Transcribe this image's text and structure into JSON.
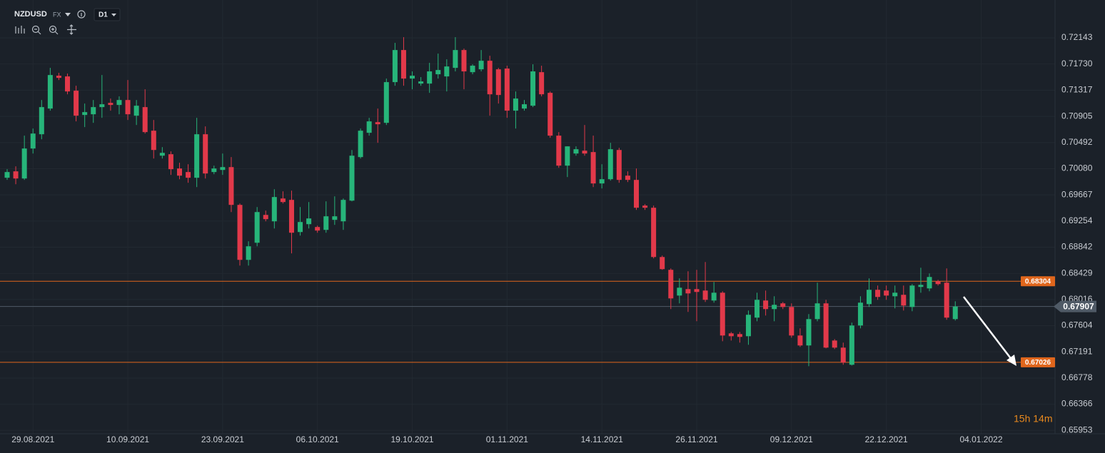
{
  "header": {
    "symbol": "NZDUSD",
    "market": "FX",
    "timeframe": "D1"
  },
  "chart_data": {
    "type": "candlestick",
    "categories": [
      null,
      null,
      null,
      "29.08.2021",
      null,
      null,
      null,
      null,
      null,
      null,
      null,
      null,
      null,
      null,
      "10.09.2021",
      null,
      null,
      null,
      null,
      null,
      null,
      null,
      null,
      null,
      null,
      "23.09.2021",
      null,
      null,
      null,
      null,
      null,
      null,
      null,
      null,
      null,
      null,
      "06.10.2021",
      null,
      null,
      null,
      null,
      null,
      null,
      null,
      null,
      null,
      null,
      "19.10.2021",
      null,
      null,
      null,
      null,
      null,
      null,
      null,
      null,
      null,
      null,
      "01.11.2021",
      null,
      null,
      null,
      null,
      null,
      null,
      null,
      null,
      null,
      null,
      "14.11.2021",
      null,
      null,
      null,
      null,
      null,
      null,
      null,
      null,
      null,
      null,
      "26.11.2021",
      null,
      null,
      null,
      null,
      null,
      null,
      null,
      null,
      null,
      null,
      "09.12.2021",
      null,
      null,
      null,
      null,
      null,
      null,
      null,
      null,
      null,
      null,
      "22.12.2021",
      null,
      null,
      null,
      null,
      null,
      null,
      null,
      null,
      null,
      null,
      "04.01.2022"
    ],
    "open": [
      0.69937,
      0.70038,
      0.69925,
      0.70398,
      0.70623,
      0.71028,
      0.71546,
      0.71535,
      0.7131,
      0.70927,
      0.70938,
      0.71051,
      0.71118,
      0.71085,
      0.71163,
      0.70916,
      0.71051,
      0.70679,
      0.70285,
      0.70308,
      0.70083,
      0.70027,
      0.69937,
      0.70623,
      0.70027,
      0.7006,
      0.70105,
      0.69509,
      0.68642,
      0.68912,
      0.69351,
      0.6925,
      0.6961,
      0.69588,
      0.69081,
      0.69205,
      0.6916,
      0.69115,
      0.69273,
      0.6925,
      0.69576,
      0.70263,
      0.70646,
      0.70814,
      0.70803,
      0.71445,
      0.71951,
      0.71501,
      0.71422,
      0.71422,
      0.71569,
      0.71535,
      0.7167,
      0.71951,
      0.71602,
      0.71647,
      0.71782,
      0.71647,
      0.71659,
      0.70995,
      0.71028,
      0.71073,
      0.71602,
      0.71276,
      0.70601,
      0.70128,
      0.70319,
      0.70364,
      0.70342,
      0.69847,
      0.69914,
      0.70375,
      0.6997,
      0.69903,
      0.69498,
      0.69464,
      0.68687,
      0.68485,
      0.68079,
      0.68181,
      0.68181,
      0.68158,
      0.68001,
      0.68124,
      0.67483,
      0.67472,
      0.67438,
      0.67731,
      0.68001,
      0.67866,
      0.67956,
      0.67899,
      0.67449,
      0.67292,
      0.67708,
      0.67956,
      0.6737,
      0.67258,
      0.66988,
      0.67607,
      0.67944,
      0.6817,
      0.68158,
      0.68068,
      0.68091,
      0.67899,
      0.68215,
      0.68192,
      0.68305,
      0.68282,
      0.67708,
      null,
      null,
      null
    ],
    "high": [
      0.70072,
      0.70117,
      0.70601,
      0.70713,
      0.71163,
      0.7167,
      0.71591,
      0.7158,
      0.71388,
      0.71107,
      0.71163,
      0.71557,
      0.71186,
      0.7122,
      0.71478,
      0.71163,
      0.71332,
      0.70848,
      0.7042,
      0.70353,
      0.70173,
      0.7015,
      0.70882,
      0.70747,
      0.70128,
      0.70319,
      0.70263,
      0.69531,
      0.68935,
      0.69475,
      0.69419,
      0.69756,
      0.69723,
      0.69734,
      0.69475,
      0.69554,
      0.69182,
      0.69565,
      0.69644,
      0.6961,
      0.70375,
      0.70713,
      0.70882,
      0.71028,
      0.71501,
      0.72064,
      0.72154,
      0.71614,
      0.71524,
      0.71749,
      0.71895,
      0.71805,
      0.72154,
      0.71974,
      0.71726,
      0.71951,
      0.71861,
      0.7167,
      0.71704,
      0.71298,
      0.71163,
      0.71726,
      0.71704,
      0.71298,
      0.70657,
      0.70432,
      0.70432,
      0.70769,
      0.70601,
      0.7015,
      0.70488,
      0.70409,
      0.70038,
      0.70083,
      0.6952,
      0.69498,
      0.6871,
      0.68507,
      0.6835,
      0.68462,
      0.68485,
      0.68608,
      0.68293,
      0.68147,
      0.67505,
      0.67505,
      0.67843,
      0.68124,
      0.68158,
      0.68068,
      0.67978,
      0.67956,
      0.67562,
      0.67787,
      0.68282,
      0.68012,
      0.67393,
      0.67337,
      0.67652,
      0.68068,
      0.6835,
      0.68237,
      0.68237,
      0.68237,
      0.68237,
      0.6826,
      0.68518,
      0.68428,
      0.68327,
      0.68507,
      0.67989,
      null,
      null,
      null
    ],
    "low": [
      0.69903,
      0.69835,
      0.69903,
      0.70319,
      0.70544,
      0.70995,
      0.71478,
      0.71253,
      0.70826,
      0.70736,
      0.70803,
      0.70882,
      0.70995,
      0.70938,
      0.70848,
      0.70769,
      0.70634,
      0.7024,
      0.7024,
      0.69982,
      0.69914,
      0.69858,
      0.6979,
      0.69925,
      0.69993,
      0.69982,
      0.69396,
      0.68552,
      0.68552,
      0.68856,
      0.6925,
      0.69137,
      0.69531,
      0.68744,
      0.69025,
      0.69137,
      0.6907,
      0.6907,
      0.69194,
      0.69115,
      0.69565,
      0.7024,
      0.70601,
      0.70488,
      0.70769,
      0.71388,
      0.71388,
      0.71332,
      0.71388,
      0.71276,
      0.71501,
      0.71298,
      0.71614,
      0.71332,
      0.71569,
      0.71614,
      0.70916,
      0.71107,
      0.70882,
      0.70713,
      0.70995,
      0.71051,
      0.7122,
      0.70567,
      0.70094,
      0.69948,
      0.70285,
      0.70285,
      0.6979,
      0.69768,
      0.69892,
      0.69858,
      0.69869,
      0.6943,
      0.6943,
      0.68665,
      0.68485,
      0.67866,
      0.67956,
      0.67821,
      0.67674,
      0.67978,
      0.67967,
      0.67359,
      0.6737,
      0.67337,
      0.67303,
      0.67674,
      0.67764,
      0.67674,
      0.67866,
      0.67415,
      0.67269,
      0.66965,
      0.67674,
      0.67247,
      0.67235,
      0.66988,
      0.66976,
      0.67562,
      0.67899,
      0.68012,
      0.68012,
      0.67877,
      0.67843,
      0.67832,
      0.68124,
      0.68147,
      0.68237,
      0.67697,
      0.67686,
      null,
      null,
      null
    ],
    "close": [
      0.70027,
      0.69925,
      0.70398,
      0.70634,
      0.71051,
      0.71557,
      0.71512,
      0.71298,
      0.70916,
      0.70972,
      0.71051,
      0.71096,
      0.71085,
      0.71163,
      0.70938,
      0.71073,
      0.70657,
      0.70375,
      0.7033,
      0.70072,
      0.6997,
      0.69937,
      0.70623,
      0.70004,
      0.70083,
      0.70105,
      0.69509,
      0.68642,
      0.68856,
      0.69396,
      0.69284,
      0.69633,
      0.69554,
      0.6907,
      0.69239,
      0.69295,
      0.69104,
      0.69329,
      0.69329,
      0.69588,
      0.70285,
      0.70679,
      0.70826,
      0.70781,
      0.71445,
      0.71951,
      0.71501,
      0.71546,
      0.71456,
      0.71614,
      0.71636,
      0.71692,
      0.71951,
      0.71614,
      0.71704,
      0.71782,
      0.71253,
      0.71242,
      0.70995,
      0.71186,
      0.71096,
      0.71614,
      0.71253,
      0.70601,
      0.70128,
      0.70432,
      0.70387,
      0.70319,
      0.69847,
      0.69914,
      0.70387,
      0.69903,
      0.69903,
      0.69464,
      0.69464,
      0.68687,
      0.68496,
      0.68034,
      0.68203,
      0.68113,
      0.68136,
      0.68012,
      0.68124,
      0.67449,
      0.67438,
      0.67427,
      0.67776,
      0.68012,
      0.67866,
      0.67933,
      0.67899,
      0.67449,
      0.67292,
      0.67708,
      0.67956,
      0.67258,
      0.67258,
      0.67022,
      0.67607,
      0.67967,
      0.6817,
      0.68057,
      0.68079,
      0.68124,
      0.67922,
      0.68237,
      0.68248,
      0.68372,
      0.6826,
      0.67731,
      0.67907,
      null,
      null,
      null
    ],
    "up_color": "#27b57a",
    "down_color": "#e2394a",
    "ylim": [
      0.659,
      0.7274
    ],
    "yticks": [
      0.72143,
      {
        "value": 0.7173,
        "label": "0.71730"
      },
      0.71317,
      0.70905,
      0.70492,
      {
        "value": 0.7008,
        "label": "0.70080"
      },
      0.69667,
      0.69254,
      0.68842,
      0.68429,
      0.68016,
      0.67604,
      0.67191,
      0.66778,
      0.66366,
      0.65953
    ],
    "grid": true,
    "price_lines": [
      {
        "value": 0.68304,
        "color": "#e0661c"
      },
      {
        "value": 0.67026,
        "color": "#e0661c"
      }
    ],
    "last_price": {
      "value": 0.67907,
      "color": "#4f5a66"
    },
    "countdown": "15h 14m"
  }
}
